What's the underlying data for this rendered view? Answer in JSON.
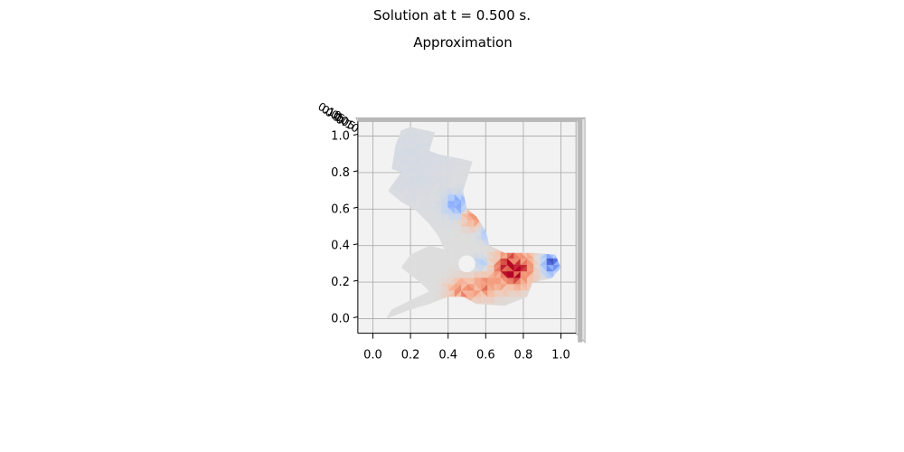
{
  "figure": {
    "suptitle": "Solution at t = 0.500 s.",
    "title": "Approximation"
  },
  "colors": {
    "pane_face": "#f2f2f2",
    "pane_edge": "#b0b0b0",
    "grid": "#b0b0b0",
    "colormap": "coolwarm"
  },
  "chart_data": {
    "type": "heatmap",
    "title": "Approximation",
    "projection": "3d-trisurf-top-view",
    "xlim": [
      -0.08,
      1.08
    ],
    "ylim": [
      -0.08,
      1.08
    ],
    "x_ticks": [
      "0.0",
      "0.2",
      "0.4",
      "0.6",
      "0.8",
      "1.0"
    ],
    "y_ticks": [
      "0.0",
      "0.2",
      "0.4",
      "0.6",
      "0.8",
      "1.0"
    ],
    "z_ticks": [
      "0.10",
      "0.05",
      "0.00",
      "-0.05",
      "-0.10"
    ],
    "grid": true,
    "zlim": [
      -0.1,
      0.1
    ],
    "domain_polygon": [
      [
        0.07,
        0.0
      ],
      [
        0.2,
        0.05
      ],
      [
        0.3,
        0.08
      ],
      [
        0.4,
        0.12
      ],
      [
        0.48,
        0.12
      ],
      [
        0.55,
        0.08
      ],
      [
        0.7,
        0.07
      ],
      [
        0.82,
        0.12
      ],
      [
        0.85,
        0.2
      ],
      [
        0.95,
        0.22
      ],
      [
        1.0,
        0.28
      ],
      [
        0.97,
        0.35
      ],
      [
        0.85,
        0.36
      ],
      [
        0.7,
        0.36
      ],
      [
        0.62,
        0.4
      ],
      [
        0.6,
        0.48
      ],
      [
        0.55,
        0.56
      ],
      [
        0.5,
        0.6
      ],
      [
        0.48,
        0.7
      ],
      [
        0.53,
        0.86
      ],
      [
        0.45,
        0.88
      ],
      [
        0.35,
        0.9
      ],
      [
        0.3,
        0.92
      ],
      [
        0.33,
        1.02
      ],
      [
        0.2,
        1.05
      ],
      [
        0.15,
        1.03
      ],
      [
        0.12,
        0.95
      ],
      [
        0.1,
        0.82
      ],
      [
        0.15,
        0.8
      ],
      [
        0.08,
        0.7
      ],
      [
        0.15,
        0.64
      ],
      [
        0.22,
        0.6
      ],
      [
        0.3,
        0.52
      ],
      [
        0.35,
        0.45
      ],
      [
        0.38,
        0.38
      ],
      [
        0.3,
        0.4
      ],
      [
        0.2,
        0.35
      ],
      [
        0.15,
        0.28
      ],
      [
        0.25,
        0.2
      ],
      [
        0.3,
        0.15
      ],
      [
        0.2,
        0.1
      ],
      [
        0.1,
        0.05
      ]
    ],
    "hole": {
      "center": [
        0.5,
        0.3
      ],
      "radius": 0.045
    },
    "field_features": [
      {
        "center": [
          0.75,
          0.28
        ],
        "amplitude": 0.1,
        "sigma": 0.07
      },
      {
        "center": [
          0.53,
          0.56
        ],
        "amplitude": 0.06,
        "sigma": 0.04
      },
      {
        "center": [
          0.47,
          0.15
        ],
        "amplitude": 0.05,
        "sigma": 0.05
      },
      {
        "center": [
          0.6,
          0.18
        ],
        "amplitude": 0.05,
        "sigma": 0.05
      },
      {
        "center": [
          0.45,
          0.62
        ],
        "amplitude": -0.06,
        "sigma": 0.04
      },
      {
        "center": [
          0.95,
          0.3
        ],
        "amplitude": -0.08,
        "sigma": 0.04
      },
      {
        "center": [
          0.63,
          0.48
        ],
        "amplitude": -0.04,
        "sigma": 0.04
      },
      {
        "center": [
          0.58,
          0.3
        ],
        "amplitude": -0.03,
        "sigma": 0.03
      },
      {
        "center": [
          0.2,
          0.85
        ],
        "amplitude": -0.005,
        "sigma": 0.2
      }
    ]
  }
}
